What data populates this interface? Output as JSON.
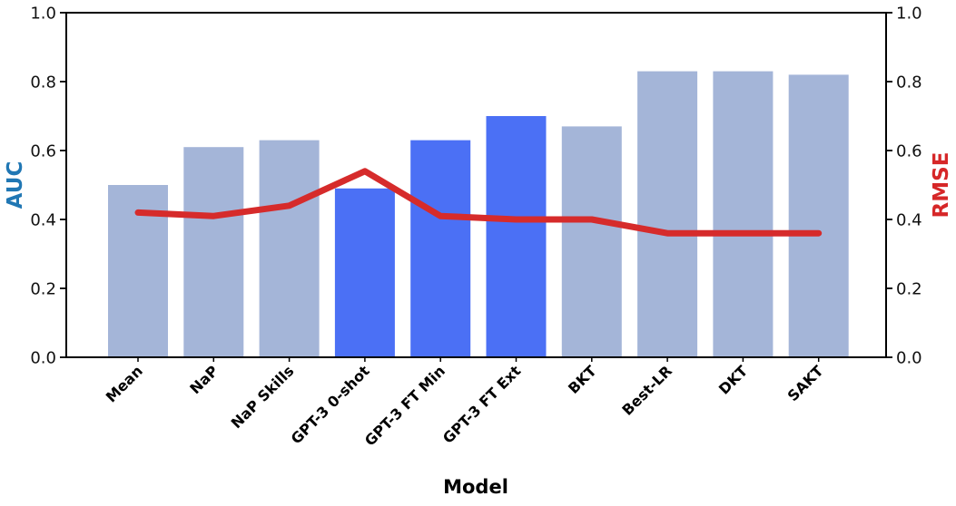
{
  "chart_data": {
    "type": "bar",
    "title": "",
    "xlabel": "Model",
    "ylabel_left": "AUC",
    "ylabel_right": "RMSE",
    "categories": [
      "Mean",
      "NaP",
      "NaP Skills",
      "GPT-3 0-shot",
      "GPT-3 FT Min",
      "GPT-3 FT Ext",
      "BKT",
      "Best-LR",
      "DKT",
      "SAKT"
    ],
    "series": [
      {
        "name": "AUC",
        "type": "bar",
        "axis": "left",
        "values": [
          0.5,
          0.61,
          0.63,
          0.49,
          0.63,
          0.7,
          0.67,
          0.83,
          0.83,
          0.82
        ]
      },
      {
        "name": "RMSE",
        "type": "line",
        "axis": "right",
        "values": [
          0.42,
          0.41,
          0.44,
          0.54,
          0.41,
          0.4,
          0.4,
          0.36,
          0.36,
          0.36
        ]
      }
    ],
    "highlighted_categories": [
      "GPT-3 0-shot",
      "GPT-3 FT Min",
      "GPT-3 FT Ext"
    ],
    "ylim_left": [
      0.0,
      1.0
    ],
    "ylim_right": [
      0.0,
      1.0
    ],
    "yticks": [
      "0.0",
      "0.2",
      "0.4",
      "0.6",
      "0.8",
      "1.0"
    ],
    "grid": "off",
    "legend": "none",
    "colors": {
      "bar_default": "#a4b5d8",
      "bar_highlight": "#4b70f5",
      "line": "#d62b2b",
      "left_label": "#2077b4",
      "right_label": "#d62728",
      "spine": "#000000",
      "tick_text": "#111111",
      "background": "#ffffff"
    }
  }
}
